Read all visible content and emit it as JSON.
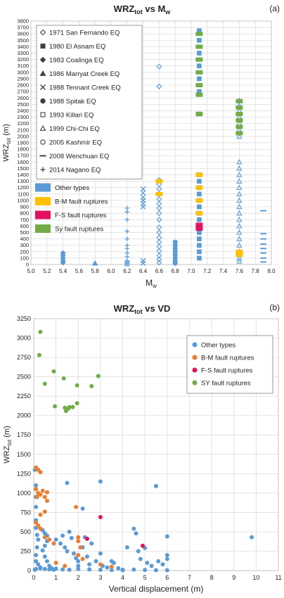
{
  "chart_data": [
    {
      "type": "scatter",
      "panel_label": "(a)",
      "title": "WRZ",
      "title_sub": "tot",
      "title_mid": " vs M",
      "title_sub2": "w",
      "xlabel": "M",
      "xlabel_sub": "w",
      "ylabel": "WRZ",
      "ylabel_sub": "tot",
      "ylabel_unit": " (m)",
      "xlim": [
        5.0,
        8.0
      ],
      "ylim": [
        0,
        3800
      ],
      "xticks": [
        "5.0",
        "5.2",
        "5.4",
        "5.6",
        "5.8",
        "6.0",
        "6.2",
        "6.4",
        "6.6",
        "6.8",
        "7.0",
        "7.2",
        "7.4",
        "7.6",
        "7.8",
        "8.0"
      ],
      "yticks": [
        "0",
        "100",
        "200",
        "300",
        "400",
        "500",
        "600",
        "700",
        "800",
        "900",
        "1000",
        "1100",
        "1200",
        "1300",
        "1400",
        "1500",
        "1600",
        "1700",
        "1800",
        "1900",
        "2000",
        "2100",
        "2200",
        "2300",
        "2400",
        "2500",
        "2600",
        "2700",
        "2800",
        "2900",
        "3000",
        "3100",
        "3200",
        "3300",
        "3400",
        "3500",
        "3600",
        "3700",
        "3800"
      ],
      "grid": true,
      "legend_position": "top-left",
      "legend": [
        {
          "label": "1971 San Fernando EQ",
          "marker": "diamond-open"
        },
        {
          "label": "1980 El Asnam EQ",
          "marker": "square"
        },
        {
          "label": "1983 Coalinga EQ",
          "marker": "diamond"
        },
        {
          "label": "1986 Marryat Creek EQ",
          "marker": "triangle"
        },
        {
          "label": "1988 Tennant Creek EQ",
          "marker": "cross"
        },
        {
          "label": "1988 Spitak EQ",
          "marker": "circle"
        },
        {
          "label": "1993 Killari EQ",
          "marker": "square-open"
        },
        {
          "label": "1999 Chi-Chi EQ",
          "marker": "triangle-open"
        },
        {
          "label": "2005 Kashmir EQ",
          "marker": "circle-open"
        },
        {
          "label": "2008 Wenchuan EQ",
          "marker": "dash"
        },
        {
          "label": "2014 Nagano EQ",
          "marker": "plus"
        },
        {
          "label": "Other types",
          "marker": "bar",
          "color": "#5b9bd5"
        },
        {
          "label": "B-M fault ruptures",
          "marker": "bar",
          "color": "#ffc000"
        },
        {
          "label": "F-S fault ruptures",
          "marker": "bar",
          "color": "#e0115f"
        },
        {
          "label": "Sy fault ruptures",
          "marker": "bar",
          "color": "#70ad47"
        }
      ],
      "series": [
        {
          "event": "1971 San Fernando EQ",
          "marker": "diamond-open",
          "color": "#5b9bd5",
          "x": 6.6,
          "y": [
            3090,
            2780,
            1320,
            1250,
            1180,
            1100,
            1020,
            950,
            880,
            800,
            700,
            580,
            500,
            420,
            350,
            280,
            210,
            140,
            80,
            30
          ]
        },
        {
          "event": "1980 El Asnam EQ",
          "marker": "square",
          "color": "#5b9bd5",
          "x": 7.1,
          "y": [
            3650,
            3500,
            3300,
            3100,
            2900,
            2700,
            2350,
            1400,
            1300,
            1200,
            1100,
            1000,
            900,
            800,
            700,
            600,
            500,
            400,
            300,
            200,
            100
          ]
        },
        {
          "event": "1983 Coalinga EQ",
          "marker": "diamond",
          "color": "#5b9bd5",
          "x": 5.4,
          "y": [
            180,
            140,
            100,
            60,
            30
          ]
        },
        {
          "event": "1986 Marryat Creek EQ",
          "marker": "triangle",
          "color": "#5b9bd5",
          "x": 5.8,
          "y": [
            20
          ]
        },
        {
          "event": "1988 Tennant Creek EQ",
          "marker": "cross",
          "color": "#5b9bd5",
          "x": 6.4,
          "y": [
            1180,
            1120,
            1050,
            1000,
            950,
            900,
            60,
            20
          ]
        },
        {
          "event": "1988 Spitak EQ",
          "marker": "circle",
          "color": "#5b9bd5",
          "x": 6.8,
          "y": [
            350,
            300,
            250,
            200,
            150,
            100,
            50,
            20
          ]
        },
        {
          "event": "1993 Killari EQ",
          "marker": "square-open",
          "color": "#5b9bd5",
          "x": 6.2,
          "y": [
            30,
            10
          ]
        },
        {
          "event": "1999 Chi-Chi EQ",
          "marker": "triangle-open",
          "color": "#5b9bd5",
          "x": 7.6,
          "y": [
            2560,
            2480,
            2400,
            2300,
            2200,
            2100,
            2000,
            1600,
            1500,
            1400,
            1300,
            1200,
            1100,
            1000,
            900,
            800,
            700,
            600,
            500,
            400,
            300,
            200,
            150,
            100,
            50
          ]
        },
        {
          "event": "2008 Wenchuan EQ",
          "marker": "dash",
          "color": "#5b9bd5",
          "x": 7.9,
          "y": [
            840,
            480,
            400,
            320,
            250,
            180,
            100,
            40
          ]
        },
        {
          "event": "2014 Nagano EQ",
          "marker": "plus",
          "color": "#5b9bd5",
          "x": 6.2,
          "y": [
            880,
            820,
            700,
            520,
            400,
            300,
            250,
            180,
            120,
            60,
            20
          ]
        }
      ],
      "highlight_points": [
        {
          "x": 7.1,
          "y": 1400,
          "color": "#ffc000"
        },
        {
          "x": 7.1,
          "y": 1200,
          "color": "#ffc000"
        },
        {
          "x": 7.1,
          "y": 1000,
          "color": "#ffc000"
        },
        {
          "x": 7.1,
          "y": 800,
          "color": "#ffc000"
        },
        {
          "x": 7.1,
          "y": 620,
          "color": "#e0115f"
        },
        {
          "x": 7.1,
          "y": 560,
          "color": "#e0115f"
        },
        {
          "x": 7.1,
          "y": 3600,
          "color": "#70ad47"
        },
        {
          "x": 7.1,
          "y": 3400,
          "color": "#70ad47"
        },
        {
          "x": 7.1,
          "y": 3200,
          "color": "#70ad47"
        },
        {
          "x": 7.1,
          "y": 3000,
          "color": "#70ad47"
        },
        {
          "x": 7.1,
          "y": 2800,
          "color": "#70ad47"
        },
        {
          "x": 7.1,
          "y": 2650,
          "color": "#70ad47"
        },
        {
          "x": 7.1,
          "y": 2350,
          "color": "#70ad47"
        },
        {
          "x": 7.6,
          "y": 2550,
          "color": "#70ad47"
        },
        {
          "x": 7.6,
          "y": 2450,
          "color": "#70ad47"
        },
        {
          "x": 7.6,
          "y": 2350,
          "color": "#70ad47"
        },
        {
          "x": 7.6,
          "y": 2250,
          "color": "#70ad47"
        },
        {
          "x": 7.6,
          "y": 2150,
          "color": "#70ad47"
        },
        {
          "x": 7.6,
          "y": 2050,
          "color": "#70ad47"
        },
        {
          "x": 6.6,
          "y": 1300,
          "color": "#ffc000"
        },
        {
          "x": 6.6,
          "y": 1100,
          "color": "#ffc000"
        },
        {
          "x": 7.6,
          "y": 200,
          "color": "#ffc000"
        },
        {
          "x": 7.6,
          "y": 150,
          "color": "#ffc000"
        }
      ]
    },
    {
      "type": "scatter",
      "panel_label": "(b)",
      "title": "WRZ",
      "title_sub": "tot",
      "title_mid": " vs VD",
      "xlabel": "Vertical displacement (m)",
      "ylabel": "WRZ",
      "ylabel_sub": "tot",
      "ylabel_unit": " (m)",
      "xlim": [
        0,
        11
      ],
      "ylim": [
        0,
        3250
      ],
      "xticks": [
        "0",
        "1",
        "2",
        "3",
        "4",
        "5",
        "6",
        "7",
        "8",
        "9",
        "10",
        "11"
      ],
      "yticks": [
        "0",
        "250",
        "500",
        "750",
        "1000",
        "1250",
        "1500",
        "1750",
        "2000",
        "2250",
        "2500",
        "2750",
        "3000",
        "3250"
      ],
      "grid": true,
      "legend_position": "top-right",
      "series": [
        {
          "name": "Other types",
          "color": "#5b9bd5",
          "points": [
            [
              0.05,
              1300
            ],
            [
              0.1,
              1100
            ],
            [
              0.1,
              950
            ],
            [
              0.1,
              820
            ],
            [
              0.1,
              650
            ],
            [
              0.1,
              550
            ],
            [
              0.15,
              460
            ],
            [
              0.2,
              400
            ],
            [
              0.15,
              300
            ],
            [
              0.1,
              200
            ],
            [
              0.1,
              120
            ],
            [
              0.2,
              80
            ],
            [
              0.3,
              40
            ],
            [
              0.1,
              20
            ],
            [
              0.05,
              10
            ],
            [
              0.4,
              520
            ],
            [
              0.5,
              480
            ],
            [
              0.6,
              450
            ],
            [
              0.6,
              380
            ],
            [
              0.5,
              320
            ],
            [
              0.4,
              260
            ],
            [
              0.5,
              180
            ],
            [
              0.6,
              120
            ],
            [
              0.7,
              60
            ],
            [
              0.8,
              30
            ],
            [
              0.9,
              10
            ],
            [
              1.0,
              400
            ],
            [
              1.2,
              350
            ],
            [
              1.3,
              450
            ],
            [
              1.4,
              300
            ],
            [
              1.5,
              250
            ],
            [
              1.5,
              1130
            ],
            [
              1.6,
              500
            ],
            [
              1.7,
              420
            ],
            [
              1.8,
              220
            ],
            [
              1.9,
              160
            ],
            [
              2.0,
              120
            ],
            [
              2.0,
              60
            ],
            [
              2.2,
              800
            ],
            [
              2.2,
              300
            ],
            [
              2.3,
              430
            ],
            [
              2.4,
              180
            ],
            [
              2.5,
              80
            ],
            [
              2.6,
              350
            ],
            [
              2.8,
              120
            ],
            [
              3.0,
              1150
            ],
            [
              3.0,
              220
            ],
            [
              3.1,
              60
            ],
            [
              3.3,
              40
            ],
            [
              3.5,
              120
            ],
            [
              3.6,
              100
            ],
            [
              3.8,
              30
            ],
            [
              4.0,
              10
            ],
            [
              4.2,
              300
            ],
            [
              4.5,
              540
            ],
            [
              4.6,
              480
            ],
            [
              4.7,
              250
            ],
            [
              4.8,
              150
            ],
            [
              5.0,
              290
            ],
            [
              5.1,
              100
            ],
            [
              5.3,
              60
            ],
            [
              5.5,
              1090
            ],
            [
              5.6,
              120
            ],
            [
              5.8,
              80
            ],
            [
              6.0,
              440
            ],
            [
              6.0,
              200
            ],
            [
              6.0,
              150
            ],
            [
              9.8,
              430
            ],
            [
              0.3,
              30
            ],
            [
              0.5,
              20
            ],
            [
              0.7,
              15
            ],
            [
              1.0,
              25
            ],
            [
              1.3,
              15
            ],
            [
              1.6,
              10
            ],
            [
              2.0,
              20
            ],
            [
              2.5,
              15
            ],
            [
              3.0,
              10
            ],
            [
              3.5,
              8
            ],
            [
              4.0,
              5
            ],
            [
              4.5,
              12
            ],
            [
              5.0,
              8
            ],
            [
              5.5,
              5
            ],
            [
              6.0,
              4
            ]
          ]
        },
        {
          "name": "B-M fault ruptures",
          "color": "#ed7d31",
          "points": [
            [
              0.1,
              1330
            ],
            [
              0.2,
              1300
            ],
            [
              0.3,
              1270
            ],
            [
              0.1,
              1050
            ],
            [
              0.2,
              1000
            ],
            [
              0.3,
              980
            ],
            [
              0.15,
              950
            ],
            [
              0.4,
              1030
            ],
            [
              0.5,
              950
            ],
            [
              0.6,
              1010
            ],
            [
              0.6,
              900
            ],
            [
              0.5,
              760
            ],
            [
              0.3,
              720
            ],
            [
              0.1,
              620
            ],
            [
              0.2,
              580
            ],
            [
              0.3,
              540
            ],
            [
              0.5,
              430
            ],
            [
              0.7,
              400
            ],
            [
              0.9,
              350
            ],
            [
              1.9,
              820
            ],
            [
              2.0,
              430
            ],
            [
              2.0,
              380
            ],
            [
              2.1,
              300
            ],
            [
              2.0,
              200
            ],
            [
              2.2,
              150
            ],
            [
              3.0,
              80
            ],
            [
              3.5,
              50
            ],
            [
              1.0,
              100
            ],
            [
              1.4,
              60
            ]
          ]
        },
        {
          "name": "F-S fault ruptures",
          "color": "#e0115f",
          "points": [
            [
              3.0,
              690
            ],
            [
              2.4,
              410
            ],
            [
              4.9,
              320
            ]
          ]
        },
        {
          "name": "SY fault ruptures",
          "color": "#70ad47",
          "points": [
            [
              0.3,
              3080
            ],
            [
              0.25,
              2780
            ],
            [
              0.5,
              2410
            ],
            [
              0.9,
              2570
            ],
            [
              0.95,
              2120
            ],
            [
              1.35,
              2480
            ],
            [
              1.4,
              2100
            ],
            [
              1.45,
              2060
            ],
            [
              1.55,
              2090
            ],
            [
              1.6,
              2110
            ],
            [
              1.75,
              2110
            ],
            [
              1.95,
              2160
            ],
            [
              1.95,
              2390
            ],
            [
              2.6,
              2380
            ],
            [
              2.9,
              2510
            ]
          ]
        }
      ]
    }
  ]
}
